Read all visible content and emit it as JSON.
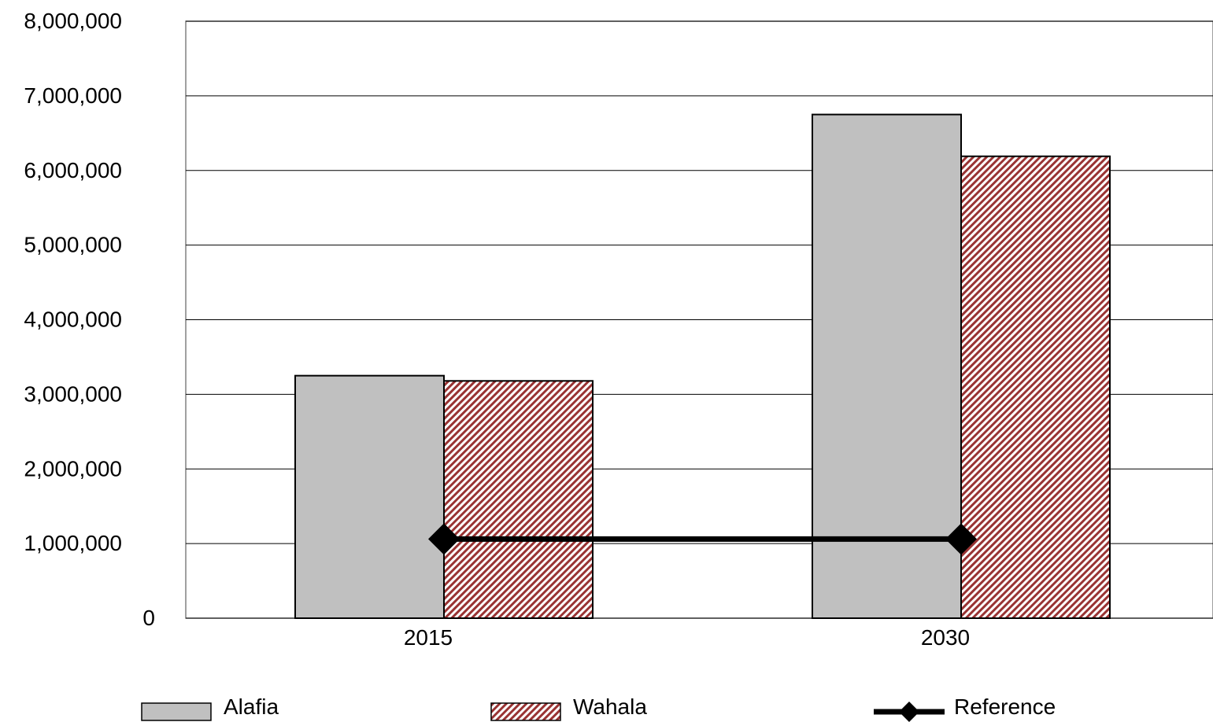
{
  "chart_data": {
    "type": "bar",
    "categories": [
      "2015",
      "2030"
    ],
    "series": [
      {
        "name": "Alafia",
        "kind": "bar",
        "values": [
          3250000,
          6750000
        ],
        "color": "#c0c0c0",
        "pattern": "solid"
      },
      {
        "name": "Wahala",
        "kind": "bar",
        "values": [
          3180000,
          6190000
        ],
        "color": "#993333",
        "pattern": "diagonal-hatch"
      },
      {
        "name": "Reference",
        "kind": "line",
        "values": [
          1060000,
          1060000
        ],
        "color": "#000000",
        "marker": "diamond"
      }
    ],
    "ylim": [
      0,
      8000000
    ],
    "yticks": [
      "0",
      "1,000,000",
      "2,000,000",
      "3,000,000",
      "4,000,000",
      "5,000,000",
      "6,000,000",
      "7,000,000",
      "8,000,000"
    ],
    "ytick_values": [
      0,
      1000000,
      2000000,
      3000000,
      4000000,
      5000000,
      6000000,
      7000000,
      8000000
    ],
    "title": "",
    "xlabel": "",
    "ylabel": "",
    "grid": true,
    "legend_position": "bottom"
  }
}
